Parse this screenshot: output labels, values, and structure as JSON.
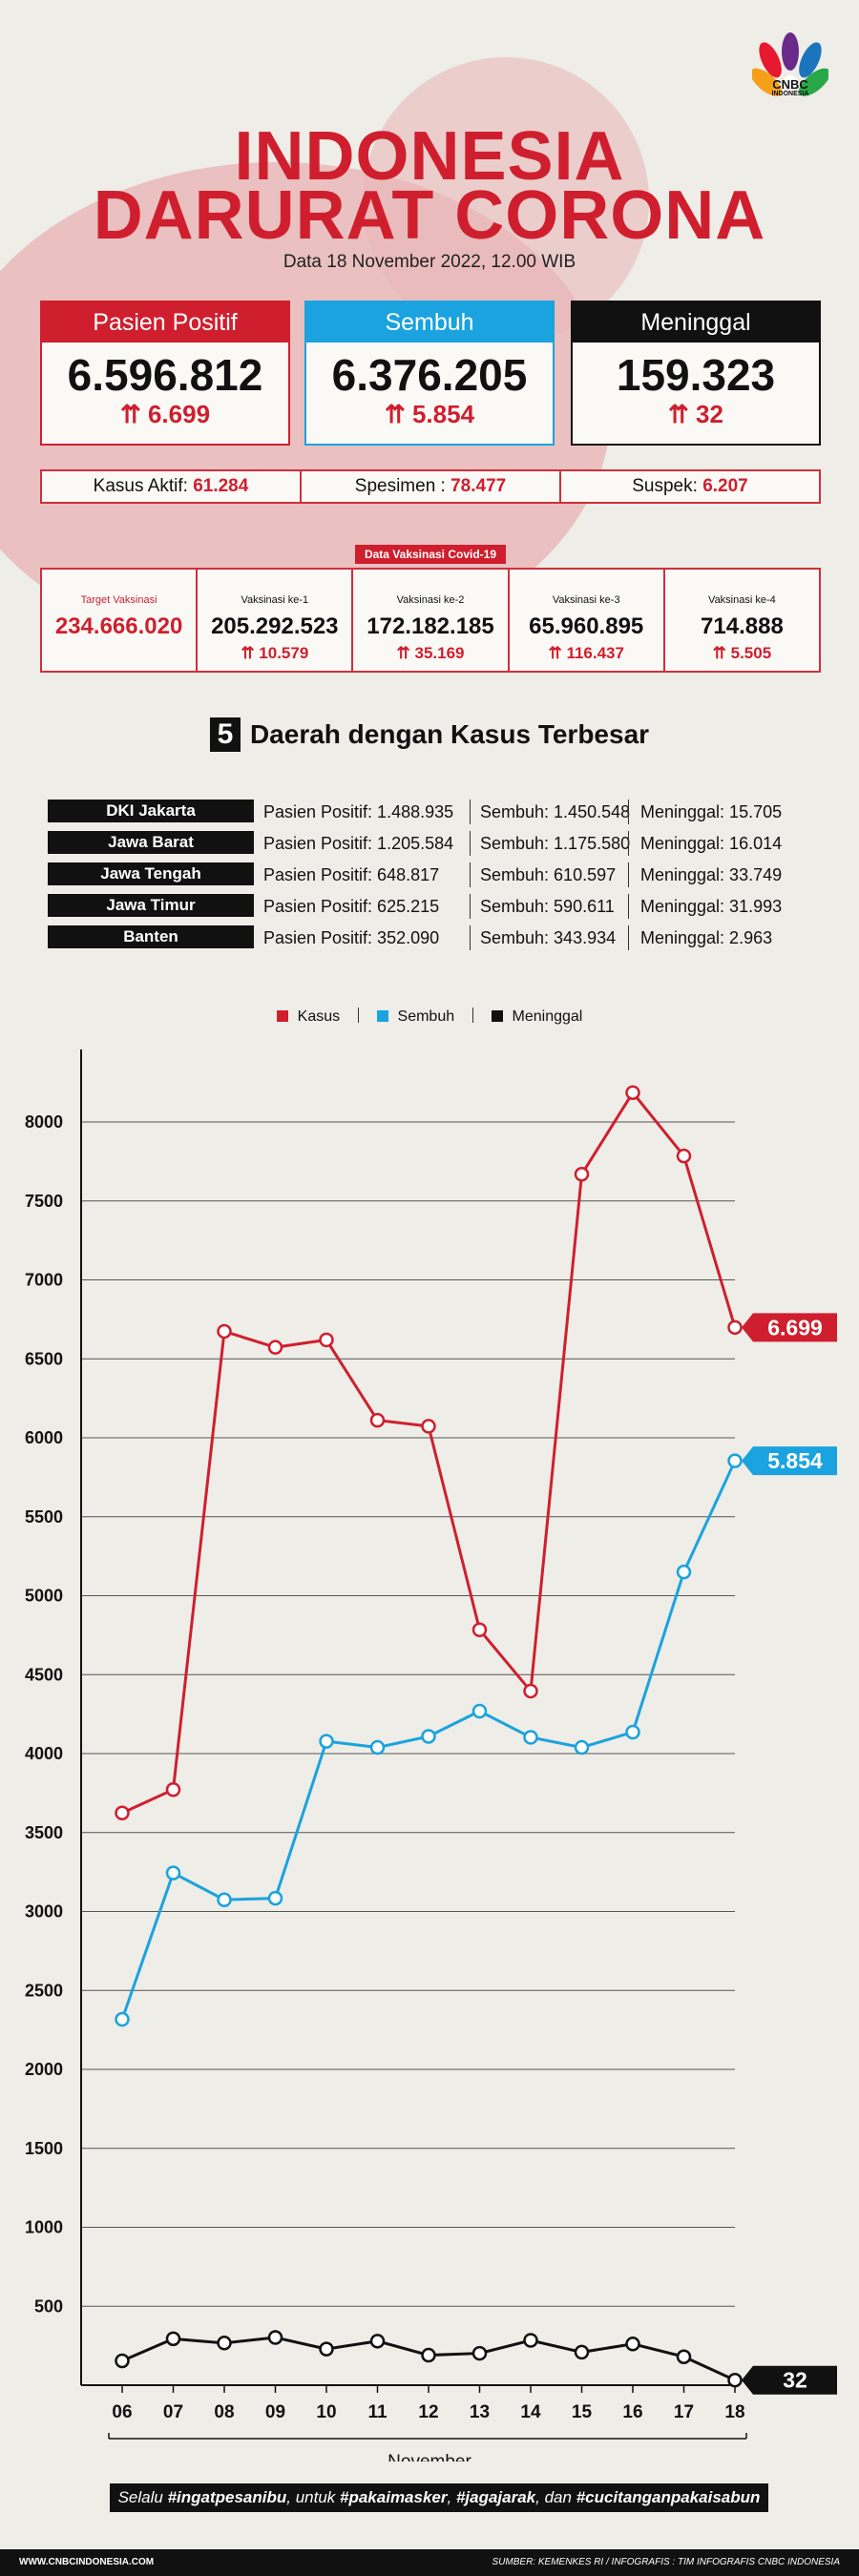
{
  "header": {
    "title_line1": "INDONESIA",
    "title_line2": "DARURAT CORONA",
    "date": "Data 18 November 2022, 12.00 WIB",
    "logo_text": "CNBC",
    "logo_sub": "INDONESIA"
  },
  "cards": [
    {
      "label": "Pasien Positif",
      "value": "6.596.812",
      "delta": "6.699",
      "color": "#cf1f2e"
    },
    {
      "label": "Sembuh",
      "value": "6.376.205",
      "delta": "5.854",
      "color": "#1aa3de"
    },
    {
      "label": "Meninggal",
      "value": "159.323",
      "delta": "32",
      "color": "#111111"
    }
  ],
  "stats": [
    {
      "label": "Kasus Aktif: ",
      "value": "61.284"
    },
    {
      "label": "Spesimen : ",
      "value": "78.477"
    },
    {
      "label": "Suspek: ",
      "value": "6.207"
    }
  ],
  "vaccination": {
    "badge": "Data Vaksinasi Covid-19",
    "items": [
      {
        "label": "Target Vaksinasi",
        "value": "234.666.020",
        "delta": ""
      },
      {
        "label": "Vaksinasi ke-1",
        "value": "205.292.523",
        "delta": "10.579"
      },
      {
        "label": "Vaksinasi ke-2",
        "value": "172.182.185",
        "delta": "35.169"
      },
      {
        "label": "Vaksinasi ke-3",
        "value": "65.960.895",
        "delta": "116.437"
      },
      {
        "label": "Vaksinasi ke-4",
        "value": "714.888",
        "delta": "5.505"
      }
    ]
  },
  "regions_section": {
    "number": "5",
    "title": "Daerah dengan Kasus Terbesar",
    "rows": [
      {
        "name": "DKI Jakarta",
        "positif": "Pasien Positif: 1.488.935",
        "sembuh": "Sembuh: 1.450.548",
        "meninggal": "Meninggal: 15.705"
      },
      {
        "name": "Jawa Barat",
        "positif": "Pasien Positif: 1.205.584",
        "sembuh": "Sembuh: 1.175.580",
        "meninggal": "Meninggal: 16.014"
      },
      {
        "name": "Jawa Tengah",
        "positif": "Pasien Positif: 648.817",
        "sembuh": "Sembuh: 610.597",
        "meninggal": "Meninggal: 33.749"
      },
      {
        "name": "Jawa Timur",
        "positif": "Pasien Positif: 625.215",
        "sembuh": "Sembuh: 590.611",
        "meninggal": "Meninggal: 31.993"
      },
      {
        "name": "Banten",
        "positif": "Pasien Positif: 352.090",
        "sembuh": "Sembuh: 343.934",
        "meninggal": "Meninggal: 2.963"
      }
    ]
  },
  "chart_data": {
    "type": "line",
    "categories": [
      "06",
      "07",
      "08",
      "09",
      "10",
      "11",
      "12",
      "13",
      "14",
      "15",
      "16",
      "17",
      "18"
    ],
    "xlabel": "November",
    "ylabel": "",
    "ylim": [
      0,
      8500
    ],
    "yticks": [
      500,
      1000,
      1500,
      2000,
      2500,
      3000,
      3500,
      4000,
      4500,
      5000,
      5500,
      6000,
      6500,
      7000,
      7500,
      8000
    ],
    "grid": true,
    "legend_position": "top-center",
    "series": [
      {
        "name": "Kasus",
        "color": "#cf1f2e",
        "values": [
          3624,
          3772,
          6674,
          6573,
          6620,
          6111,
          6073,
          4784,
          4396,
          7669,
          8186,
          7785,
          6699
        ],
        "end_label": "6.699"
      },
      {
        "name": "Sembuh",
        "color": "#1aa3de",
        "values": [
          2317,
          3244,
          3074,
          3084,
          4078,
          4039,
          4109,
          4269,
          4103,
          4039,
          4136,
          5150,
          5854
        ],
        "end_label": "5.854"
      },
      {
        "name": "Meninggal",
        "color": "#111111",
        "values": [
          154,
          294,
          267,
          302,
          229,
          279,
          190,
          202,
          284,
          209,
          261,
          180,
          32
        ],
        "end_label": "32"
      }
    ]
  },
  "slogan": {
    "parts": [
      {
        "text": "Selalu ",
        "bold": false
      },
      {
        "text": "#ingatpesanibu",
        "bold": true
      },
      {
        "text": ", untuk ",
        "bold": false
      },
      {
        "text": "#pakaimasker",
        "bold": true
      },
      {
        "text": ", ",
        "bold": false
      },
      {
        "text": "#jagajarak",
        "bold": true
      },
      {
        "text": ", dan ",
        "bold": false
      },
      {
        "text": "#cucitanganpakaisabun",
        "bold": true
      }
    ]
  },
  "footer": {
    "site": "WWW.CNBCINDONESIA.COM",
    "source": "SUMBER: KEMENKES RI / INFOGRAFIS : TIM INFOGRAFIS CNBC INDONESIA"
  }
}
